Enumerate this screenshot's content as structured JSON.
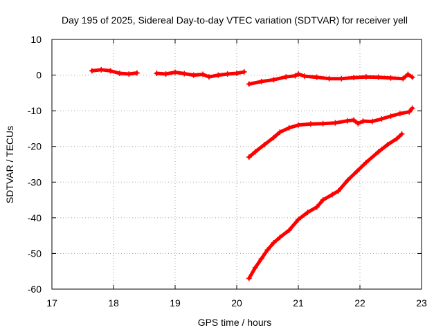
{
  "chart_data": {
    "type": "scatter",
    "title": "Day 195 of 2025, Sidereal Day-to-day VTEC variation (SDTVAR) for receiver yell",
    "xlabel": "GPS time / hours",
    "ylabel": "SDTVAR / TECUs",
    "xlim": [
      17,
      23
    ],
    "ylim": [
      -60,
      10
    ],
    "xticks": [
      17,
      18,
      19,
      20,
      21,
      22,
      23
    ],
    "yticks": [
      10,
      0,
      -10,
      -20,
      -30,
      -40,
      -50,
      -60
    ],
    "xtick_labels": [
      "17",
      "18",
      "19",
      "20",
      "21",
      "22",
      "23"
    ],
    "ytick_labels": [
      "10",
      "0",
      "-10",
      "-20",
      "-30",
      "-40",
      "-50",
      "-60"
    ],
    "grid": true,
    "color": "#ff0000",
    "marker": "plus",
    "series": [
      {
        "name": "segment-a",
        "points": [
          [
            17.65,
            1.2
          ],
          [
            17.8,
            1.5
          ],
          [
            17.95,
            1.2
          ],
          [
            18.1,
            0.5
          ],
          [
            18.25,
            0.3
          ],
          [
            18.38,
            0.6
          ]
        ]
      },
      {
        "name": "segment-b",
        "points": [
          [
            18.7,
            0.5
          ],
          [
            18.85,
            0.3
          ],
          [
            19.0,
            0.8
          ],
          [
            19.15,
            0.4
          ],
          [
            19.3,
            0.0
          ],
          [
            19.45,
            0.2
          ],
          [
            19.55,
            -0.5
          ],
          [
            19.7,
            0.0
          ],
          [
            19.85,
            0.3
          ],
          [
            20.0,
            0.5
          ],
          [
            20.12,
            0.9
          ]
        ]
      },
      {
        "name": "segment-c",
        "points": [
          [
            20.2,
            -2.5
          ],
          [
            20.4,
            -1.8
          ],
          [
            20.6,
            -1.3
          ],
          [
            20.8,
            -0.5
          ],
          [
            20.95,
            -0.2
          ],
          [
            21.0,
            0.3
          ],
          [
            21.1,
            -0.3
          ],
          [
            21.3,
            -0.6
          ],
          [
            21.5,
            -1.0
          ],
          [
            21.7,
            -1.0
          ],
          [
            21.9,
            -0.7
          ],
          [
            22.1,
            -0.5
          ],
          [
            22.3,
            -0.6
          ],
          [
            22.5,
            -0.8
          ],
          [
            22.7,
            -1.0
          ],
          [
            22.78,
            0.2
          ],
          [
            22.85,
            -0.6
          ]
        ]
      },
      {
        "name": "segment-d",
        "points": [
          [
            20.2,
            -23
          ],
          [
            20.3,
            -21.5
          ],
          [
            20.45,
            -19.5
          ],
          [
            20.6,
            -17.5
          ],
          [
            20.7,
            -16.0
          ],
          [
            20.85,
            -14.8
          ],
          [
            21.0,
            -14.0
          ],
          [
            21.2,
            -13.7
          ],
          [
            21.4,
            -13.6
          ],
          [
            21.6,
            -13.4
          ],
          [
            21.8,
            -12.8
          ],
          [
            21.9,
            -12.6
          ],
          [
            21.97,
            -13.6
          ],
          [
            22.05,
            -12.9
          ],
          [
            22.2,
            -13.0
          ],
          [
            22.35,
            -12.3
          ],
          [
            22.5,
            -11.5
          ],
          [
            22.65,
            -10.8
          ],
          [
            22.8,
            -10.3
          ],
          [
            22.85,
            -9.3
          ]
        ]
      },
      {
        "name": "segment-e",
        "points": [
          [
            20.2,
            -57
          ],
          [
            20.3,
            -54
          ],
          [
            20.4,
            -51.5
          ],
          [
            20.5,
            -49
          ],
          [
            20.6,
            -47
          ],
          [
            20.7,
            -45.5
          ],
          [
            20.85,
            -43.5
          ],
          [
            21.0,
            -40.5
          ],
          [
            21.15,
            -38.5
          ],
          [
            21.3,
            -37
          ],
          [
            21.4,
            -35
          ],
          [
            21.55,
            -33.5
          ],
          [
            21.65,
            -32.5
          ],
          [
            21.8,
            -29.5
          ],
          [
            21.95,
            -27
          ],
          [
            22.1,
            -24.5
          ],
          [
            22.3,
            -21.5
          ],
          [
            22.45,
            -19.5
          ],
          [
            22.6,
            -17.8
          ],
          [
            22.68,
            -16.5
          ]
        ]
      }
    ]
  }
}
